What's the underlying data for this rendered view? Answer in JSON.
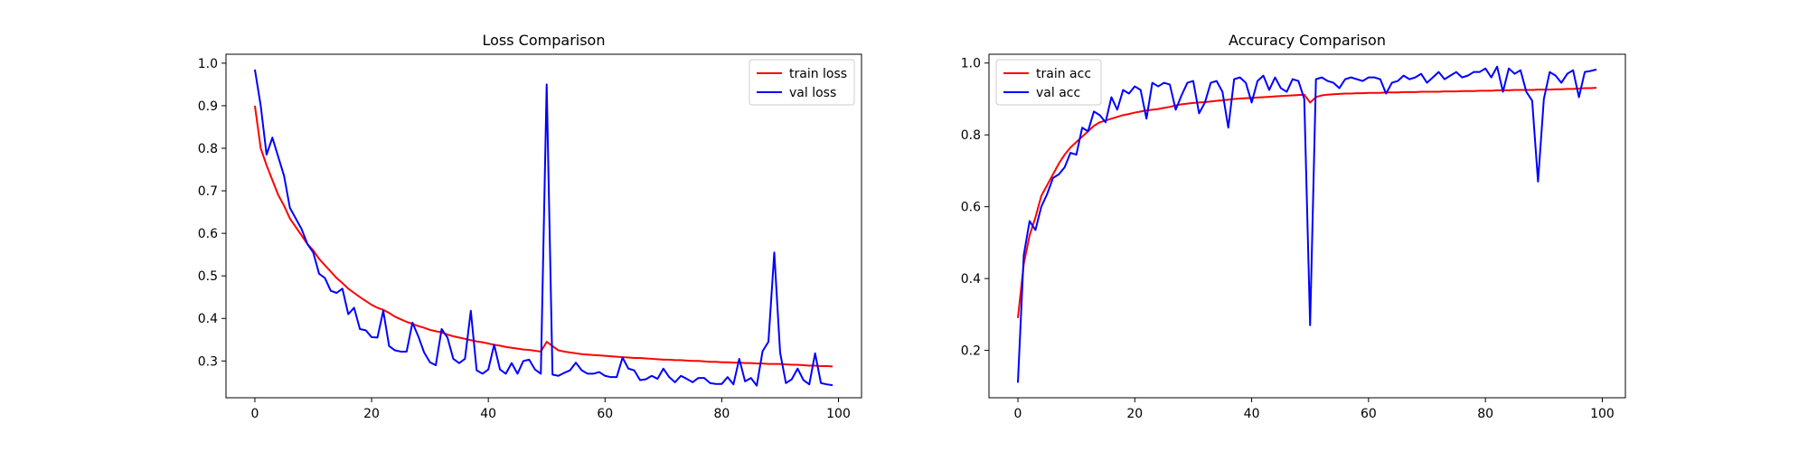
{
  "chart_data": [
    {
      "type": "line",
      "title": "Loss Comparison",
      "xlabel": "",
      "ylabel": "",
      "xlim": [
        -4.95,
        103.95
      ],
      "ylim": [
        0.2135,
        1.021
      ],
      "x_ticks": [
        0,
        20,
        40,
        60,
        80,
        100
      ],
      "x_tick_labels": [
        "0",
        "20",
        "40",
        "60",
        "80",
        "100"
      ],
      "y_ticks": [
        0.3,
        0.4,
        0.5,
        0.6,
        0.7,
        0.8,
        0.9,
        1.0
      ],
      "y_tick_labels": [
        "0.3",
        "0.4",
        "0.5",
        "0.6",
        "0.7",
        "0.8",
        "0.9",
        "1.0"
      ],
      "grid": false,
      "legend_position": "upper-right",
      "series": [
        {
          "name": "train loss",
          "color": "#ff0000",
          "x": [
            0,
            1,
            2,
            3,
            4,
            5,
            6,
            7,
            8,
            9,
            10,
            11,
            12,
            13,
            14,
            15,
            16,
            17,
            18,
            19,
            20,
            21,
            22,
            23,
            24,
            25,
            26,
            27,
            28,
            29,
            30,
            31,
            32,
            33,
            34,
            35,
            36,
            37,
            38,
            39,
            40,
            41,
            42,
            43,
            44,
            45,
            46,
            47,
            48,
            49,
            50,
            51,
            52,
            53,
            54,
            55,
            56,
            57,
            58,
            59,
            60,
            61,
            62,
            63,
            64,
            65,
            66,
            67,
            68,
            69,
            70,
            71,
            72,
            73,
            74,
            75,
            76,
            77,
            78,
            79,
            80,
            81,
            82,
            83,
            84,
            85,
            86,
            87,
            88,
            89,
            90,
            91,
            92,
            93,
            94,
            95,
            96,
            97,
            98,
            99
          ],
          "values": [
            0.9,
            0.8,
            0.76,
            0.725,
            0.69,
            0.665,
            0.635,
            0.615,
            0.595,
            0.575,
            0.56,
            0.54,
            0.525,
            0.51,
            0.495,
            0.483,
            0.47,
            0.46,
            0.45,
            0.441,
            0.432,
            0.425,
            0.42,
            0.413,
            0.404,
            0.398,
            0.392,
            0.387,
            0.382,
            0.378,
            0.373,
            0.37,
            0.367,
            0.362,
            0.358,
            0.355,
            0.352,
            0.349,
            0.346,
            0.344,
            0.341,
            0.338,
            0.336,
            0.333,
            0.331,
            0.329,
            0.327,
            0.326,
            0.324,
            0.322,
            0.345,
            0.335,
            0.325,
            0.322,
            0.32,
            0.318,
            0.316,
            0.315,
            0.314,
            0.313,
            0.312,
            0.311,
            0.31,
            0.309,
            0.308,
            0.307,
            0.307,
            0.306,
            0.305,
            0.304,
            0.303,
            0.303,
            0.302,
            0.302,
            0.301,
            0.3,
            0.3,
            0.299,
            0.298,
            0.298,
            0.297,
            0.297,
            0.296,
            0.296,
            0.295,
            0.295,
            0.294,
            0.294,
            0.293,
            0.293,
            0.293,
            0.292,
            0.291,
            0.291,
            0.29,
            0.289,
            0.289,
            0.288,
            0.288,
            0.287
          ]
        },
        {
          "name": "val loss",
          "color": "#0000ff",
          "x": [
            0,
            1,
            2,
            3,
            4,
            5,
            6,
            7,
            8,
            9,
            10,
            11,
            12,
            13,
            14,
            15,
            16,
            17,
            18,
            19,
            20,
            21,
            22,
            23,
            24,
            25,
            26,
            27,
            28,
            29,
            30,
            31,
            32,
            33,
            34,
            35,
            36,
            37,
            38,
            39,
            40,
            41,
            42,
            43,
            44,
            45,
            46,
            47,
            48,
            49,
            50,
            51,
            52,
            53,
            54,
            55,
            56,
            57,
            58,
            59,
            60,
            61,
            62,
            63,
            64,
            65,
            66,
            67,
            68,
            69,
            70,
            71,
            72,
            73,
            74,
            75,
            76,
            77,
            78,
            79,
            80,
            81,
            82,
            83,
            84,
            85,
            86,
            87,
            88,
            89,
            90,
            91,
            92,
            93,
            94,
            95,
            96,
            97,
            98,
            99
          ],
          "values": [
            0.985,
            0.9,
            0.785,
            0.825,
            0.78,
            0.735,
            0.66,
            0.635,
            0.61,
            0.575,
            0.555,
            0.505,
            0.495,
            0.465,
            0.46,
            0.47,
            0.41,
            0.425,
            0.375,
            0.372,
            0.356,
            0.355,
            0.418,
            0.335,
            0.325,
            0.322,
            0.322,
            0.39,
            0.358,
            0.32,
            0.297,
            0.29,
            0.375,
            0.355,
            0.305,
            0.295,
            0.305,
            0.418,
            0.278,
            0.27,
            0.28,
            0.338,
            0.28,
            0.27,
            0.295,
            0.27,
            0.3,
            0.303,
            0.28,
            0.27,
            0.95,
            0.268,
            0.265,
            0.272,
            0.278,
            0.296,
            0.278,
            0.27,
            0.27,
            0.274,
            0.265,
            0.262,
            0.262,
            0.308,
            0.282,
            0.278,
            0.255,
            0.257,
            0.265,
            0.258,
            0.282,
            0.262,
            0.25,
            0.265,
            0.258,
            0.25,
            0.26,
            0.26,
            0.248,
            0.246,
            0.246,
            0.262,
            0.245,
            0.305,
            0.252,
            0.26,
            0.242,
            0.323,
            0.345,
            0.555,
            0.32,
            0.248,
            0.257,
            0.282,
            0.255,
            0.245,
            0.318,
            0.248,
            0.245,
            0.243
          ]
        }
      ]
    },
    {
      "type": "line",
      "title": "Accuracy Comparison",
      "xlabel": "",
      "ylabel": "",
      "xlim": [
        -4.95,
        103.95
      ],
      "ylim": [
        0.068,
        1.0245
      ],
      "x_ticks": [
        0,
        20,
        40,
        60,
        80,
        100
      ],
      "x_tick_labels": [
        "0",
        "20",
        "40",
        "60",
        "80",
        "100"
      ],
      "y_ticks": [
        0.2,
        0.4,
        0.6,
        0.8,
        1.0
      ],
      "y_tick_labels": [
        "0.2",
        "0.4",
        "0.6",
        "0.8",
        "1.0"
      ],
      "grid": false,
      "legend_position": "upper-left",
      "series": [
        {
          "name": "train acc",
          "color": "#ff0000",
          "x": [
            0,
            1,
            2,
            3,
            4,
            5,
            6,
            7,
            8,
            9,
            10,
            11,
            12,
            13,
            14,
            15,
            16,
            17,
            18,
            19,
            20,
            21,
            22,
            23,
            24,
            25,
            26,
            27,
            28,
            29,
            30,
            31,
            32,
            33,
            34,
            35,
            36,
            37,
            38,
            39,
            40,
            41,
            42,
            43,
            44,
            45,
            46,
            47,
            48,
            49,
            50,
            51,
            52,
            53,
            54,
            55,
            56,
            57,
            58,
            59,
            60,
            61,
            62,
            63,
            64,
            65,
            66,
            67,
            68,
            69,
            70,
            71,
            72,
            73,
            74,
            75,
            76,
            77,
            78,
            79,
            80,
            81,
            82,
            83,
            84,
            85,
            86,
            87,
            88,
            89,
            90,
            91,
            92,
            93,
            94,
            95,
            96,
            97,
            98,
            99
          ],
          "values": [
            0.29,
            0.44,
            0.52,
            0.57,
            0.63,
            0.66,
            0.69,
            0.72,
            0.745,
            0.765,
            0.78,
            0.795,
            0.81,
            0.825,
            0.835,
            0.84,
            0.845,
            0.85,
            0.855,
            0.858,
            0.862,
            0.865,
            0.868,
            0.87,
            0.872,
            0.875,
            0.878,
            0.882,
            0.885,
            0.887,
            0.889,
            0.89,
            0.891,
            0.893,
            0.895,
            0.896,
            0.898,
            0.9,
            0.901,
            0.902,
            0.903,
            0.904,
            0.905,
            0.906,
            0.907,
            0.908,
            0.909,
            0.91,
            0.911,
            0.912,
            0.89,
            0.905,
            0.91,
            0.912,
            0.913,
            0.914,
            0.915,
            0.915,
            0.916,
            0.916,
            0.917,
            0.917,
            0.917,
            0.918,
            0.918,
            0.918,
            0.919,
            0.919,
            0.919,
            0.92,
            0.92,
            0.92,
            0.92,
            0.921,
            0.921,
            0.921,
            0.922,
            0.922,
            0.922,
            0.923,
            0.923,
            0.923,
            0.924,
            0.924,
            0.924,
            0.925,
            0.925,
            0.925,
            0.925,
            0.926,
            0.926,
            0.926,
            0.927,
            0.927,
            0.928,
            0.928,
            0.929,
            0.93,
            0.93,
            0.931
          ]
        },
        {
          "name": "val acc",
          "color": "#0000ff",
          "x": [
            0,
            1,
            2,
            3,
            4,
            5,
            6,
            7,
            8,
            9,
            10,
            11,
            12,
            13,
            14,
            15,
            16,
            17,
            18,
            19,
            20,
            21,
            22,
            23,
            24,
            25,
            26,
            27,
            28,
            29,
            30,
            31,
            32,
            33,
            34,
            35,
            36,
            37,
            38,
            39,
            40,
            41,
            42,
            43,
            44,
            45,
            46,
            47,
            48,
            49,
            50,
            51,
            52,
            53,
            54,
            55,
            56,
            57,
            58,
            59,
            60,
            61,
            62,
            63,
            64,
            65,
            66,
            67,
            68,
            69,
            70,
            71,
            72,
            73,
            74,
            75,
            76,
            77,
            78,
            79,
            80,
            81,
            82,
            83,
            84,
            85,
            86,
            87,
            88,
            89,
            90,
            91,
            92,
            93,
            94,
            95,
            96,
            97,
            98,
            99
          ],
          "values": [
            0.11,
            0.465,
            0.56,
            0.535,
            0.6,
            0.635,
            0.68,
            0.69,
            0.71,
            0.75,
            0.745,
            0.82,
            0.81,
            0.865,
            0.855,
            0.835,
            0.905,
            0.87,
            0.925,
            0.915,
            0.935,
            0.925,
            0.845,
            0.945,
            0.935,
            0.945,
            0.94,
            0.87,
            0.91,
            0.945,
            0.95,
            0.86,
            0.89,
            0.945,
            0.95,
            0.92,
            0.82,
            0.955,
            0.96,
            0.945,
            0.89,
            0.95,
            0.965,
            0.925,
            0.96,
            0.93,
            0.92,
            0.955,
            0.95,
            0.9,
            0.27,
            0.955,
            0.96,
            0.95,
            0.945,
            0.93,
            0.955,
            0.96,
            0.955,
            0.95,
            0.96,
            0.96,
            0.955,
            0.915,
            0.945,
            0.95,
            0.965,
            0.955,
            0.96,
            0.97,
            0.945,
            0.96,
            0.975,
            0.955,
            0.965,
            0.975,
            0.96,
            0.965,
            0.975,
            0.975,
            0.985,
            0.96,
            0.99,
            0.92,
            0.985,
            0.97,
            0.98,
            0.92,
            0.895,
            0.67,
            0.9,
            0.975,
            0.965,
            0.945,
            0.97,
            0.98,
            0.905,
            0.975,
            0.978,
            0.982
          ]
        }
      ]
    }
  ]
}
